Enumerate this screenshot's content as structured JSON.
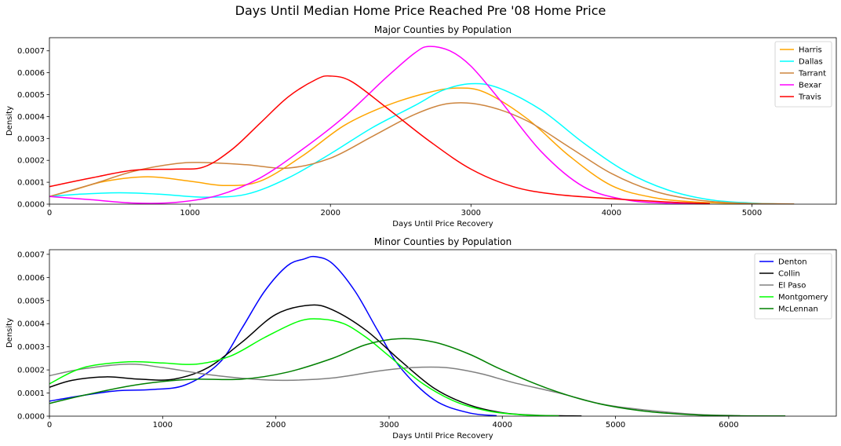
{
  "figure": {
    "title": "Days Until Median Home Price Reached Pre '08 Home Price"
  },
  "chart_data": [
    {
      "type": "line",
      "title": "Major Counties by Population",
      "xlabel": "Days Until Price Recovery",
      "ylabel": "Density",
      "xlim": [
        0,
        5600
      ],
      "ylim": [
        0,
        0.00076
      ],
      "xticks": [
        0,
        1000,
        2000,
        3000,
        4000,
        5000
      ],
      "xtick_labels": [
        "0",
        "1000",
        "2000",
        "3000",
        "4000",
        "5000"
      ],
      "yticks": [
        0,
        0.0001,
        0.0002,
        0.0003,
        0.0004,
        0.0005,
        0.0006,
        0.0007
      ],
      "ytick_labels": [
        "0.0000",
        "0.0001",
        "0.0002",
        "0.0003",
        "0.0004",
        "0.0005",
        "0.0006",
        "0.0007"
      ],
      "grid": false,
      "legend_position": "top-right",
      "series": [
        {
          "name": "Harris",
          "color": "#ffa500",
          "x": [
            0,
            200,
            400,
            700,
            1000,
            1250,
            1500,
            1800,
            2100,
            2400,
            2700,
            2900,
            3100,
            3400,
            3700,
            4000,
            4300,
            4600,
            5000
          ],
          "y": [
            3.5e-05,
            7e-05,
            0.000105,
            0.000125,
            0.000105,
            8.5e-05,
            0.000105,
            0.00022,
            0.00036,
            0.00045,
            0.00051,
            0.00053,
            0.00051,
            0.00039,
            0.00022,
            8.5e-05,
            3e-05,
            1e-05,
            1e-06
          ]
        },
        {
          "name": "Dallas",
          "color": "#00ffff",
          "x": [
            0,
            200,
            500,
            800,
            1100,
            1400,
            1700,
            2000,
            2300,
            2600,
            2800,
            3000,
            3200,
            3500,
            3800,
            4100,
            4400,
            4700,
            5000,
            5200
          ],
          "y": [
            3.5e-05,
            4.5e-05,
            5.2e-05,
            4.5e-05,
            3.2e-05,
            4.5e-05,
            0.00012,
            0.00023,
            0.00035,
            0.00045,
            0.00052,
            0.00055,
            0.00053,
            0.00043,
            0.00028,
            0.00015,
            6.5e-05,
            2e-05,
            5e-06,
            1e-06
          ]
        },
        {
          "name": "Tarrant",
          "color": "#cd853f",
          "x": [
            0,
            300,
            600,
            900,
            1100,
            1400,
            1700,
            2000,
            2300,
            2600,
            2850,
            3100,
            3400,
            3700,
            4000,
            4300,
            4600,
            4900,
            5300
          ],
          "y": [
            3.5e-05,
            9e-05,
            0.00015,
            0.000185,
            0.00019,
            0.00018,
            0.000165,
            0.00021,
            0.00031,
            0.00041,
            0.00046,
            0.00045,
            0.00038,
            0.00026,
            0.00014,
            6e-05,
            2e-05,
            5e-06,
            1e-06
          ]
        },
        {
          "name": "Bexar",
          "color": "#ff00ff",
          "x": [
            0,
            300,
            600,
            900,
            1200,
            1500,
            1800,
            2100,
            2400,
            2600,
            2700,
            2850,
            3000,
            3200,
            3500,
            3800,
            4100,
            4400,
            4700
          ],
          "y": [
            3.5e-05,
            2e-05,
            5e-06,
            8e-06,
            4e-05,
            0.00012,
            0.00025,
            0.0004,
            0.00058,
            0.00069,
            0.00072,
            0.0007,
            0.00063,
            0.00048,
            0.00024,
            8e-05,
            2e-05,
            4e-06,
            1e-06
          ]
        },
        {
          "name": "Travis",
          "color": "#ff0000",
          "x": [
            0,
            300,
            600,
            900,
            1100,
            1300,
            1500,
            1700,
            1900,
            2000,
            2150,
            2400,
            2700,
            3000,
            3300,
            3600,
            4000,
            4400,
            4700
          ],
          "y": [
            8e-05,
            0.00012,
            0.000155,
            0.00016,
            0.00017,
            0.00025,
            0.00037,
            0.00049,
            0.00057,
            0.000585,
            0.00056,
            0.00044,
            0.00029,
            0.00016,
            8e-05,
            4.5e-05,
            2.5e-05,
            1e-05,
            3e-06
          ]
        }
      ]
    },
    {
      "type": "line",
      "title": "Minor Counties by Population",
      "xlabel": "Days Until Price Recovery",
      "ylabel": "Density",
      "xlim": [
        0,
        6950
      ],
      "ylim": [
        0,
        0.00072
      ],
      "xticks": [
        0,
        1000,
        2000,
        3000,
        4000,
        5000,
        6000
      ],
      "xtick_labels": [
        "0",
        "1000",
        "2000",
        "3000",
        "4000",
        "5000",
        "6000"
      ],
      "yticks": [
        0,
        0.0001,
        0.0002,
        0.0003,
        0.0004,
        0.0005,
        0.0006,
        0.0007
      ],
      "ytick_labels": [
        "0.0000",
        "0.0001",
        "0.0002",
        "0.0003",
        "0.0004",
        "0.0005",
        "0.0006",
        "0.0007"
      ],
      "grid": false,
      "legend_position": "top-right",
      "series": [
        {
          "name": "Denton",
          "color": "#0000ff",
          "x": [
            0,
            300,
            600,
            900,
            1200,
            1500,
            1700,
            1900,
            2100,
            2250,
            2350,
            2500,
            2700,
            2900,
            3100,
            3400,
            3700,
            3950
          ],
          "y": [
            6.5e-05,
            9e-05,
            0.00011,
            0.000115,
            0.000135,
            0.00023,
            0.00038,
            0.00054,
            0.00065,
            0.00068,
            0.00069,
            0.00066,
            0.00054,
            0.00037,
            0.00021,
            7e-05,
            1.5e-05,
            2e-06
          ]
        },
        {
          "name": "Collin",
          "color": "#000000",
          "x": [
            0,
            200,
            500,
            800,
            1100,
            1400,
            1700,
            2000,
            2300,
            2500,
            2800,
            3100,
            3400,
            3700,
            4000,
            4300,
            4700
          ],
          "y": [
            0.000125,
            0.000155,
            0.00017,
            0.00016,
            0.00016,
            0.00021,
            0.00032,
            0.00044,
            0.00048,
            0.00046,
            0.00037,
            0.00024,
            0.00012,
            5e-05,
            1.5e-05,
            4e-06,
            1e-06
          ]
        },
        {
          "name": "El Paso",
          "color": "#808080",
          "x": [
            0,
            300,
            700,
            1000,
            1400,
            1800,
            2100,
            2500,
            2900,
            3200,
            3500,
            3800,
            4100,
            4500,
            4900,
            5300,
            5700,
            6100
          ],
          "y": [
            0.000175,
            0.000205,
            0.000225,
            0.00021,
            0.00018,
            0.00016,
            0.000155,
            0.000165,
            0.000195,
            0.00021,
            0.00021,
            0.000185,
            0.000145,
            0.0001,
            5e-05,
            2.5e-05,
            8e-06,
            2e-06
          ]
        },
        {
          "name": "Montgomery",
          "color": "#00ff00",
          "x": [
            0,
            300,
            700,
            1000,
            1300,
            1600,
            1900,
            2200,
            2400,
            2600,
            2800,
            3000,
            3300,
            3600,
            3900,
            4200,
            4500
          ],
          "y": [
            0.00014,
            0.00021,
            0.000235,
            0.00023,
            0.000225,
            0.00026,
            0.00034,
            0.00041,
            0.00042,
            0.0004,
            0.00034,
            0.00026,
            0.00014,
            6e-05,
            2e-05,
            5e-06,
            1e-06
          ]
        },
        {
          "name": "McLennan",
          "color": "#008000",
          "x": [
            0,
            300,
            700,
            1000,
            1300,
            1700,
            2100,
            2500,
            2800,
            3100,
            3400,
            3700,
            4000,
            4400,
            4800,
            5200,
            5600,
            6000,
            6500
          ],
          "y": [
            5.5e-05,
            9e-05,
            0.00013,
            0.00015,
            0.00016,
            0.00016,
            0.00019,
            0.00025,
            0.00031,
            0.000335,
            0.00032,
            0.00027,
            0.0002,
            0.00012,
            6e-05,
            2.5e-05,
            8e-06,
            2e-06,
            1e-06
          ]
        }
      ]
    }
  ]
}
